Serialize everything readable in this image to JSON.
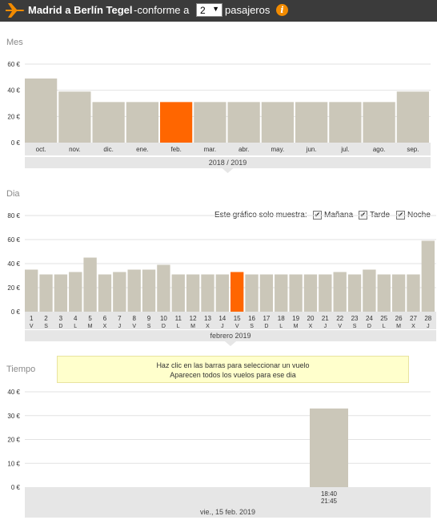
{
  "header": {
    "route": "Madrid a Berlín Tegel",
    "prefix": "-conforme a",
    "passengers_value": "2",
    "suffix": "pasajeros",
    "info_icon": "info-icon",
    "accent": "#f28b00",
    "bar_bg": "#3b3b3b"
  },
  "sections": {
    "month_title": "Mes",
    "day_title": "Dia",
    "time_title": "Tiempo"
  },
  "colors": {
    "bar": "#cbc7b9",
    "selected": "#ff6600",
    "axis_band": "#e6e6e6"
  },
  "filters": {
    "label": "Este gráfico solo muestra:",
    "options": [
      {
        "label": "Mañana",
        "checked": true
      },
      {
        "label": "Tarde",
        "checked": true
      },
      {
        "label": "Noche",
        "checked": true
      }
    ]
  },
  "tooltip": {
    "line1": "Haz clic en las barras para seleccionar un vuelo",
    "line2": "Aparecen todos los vuelos para ese dia"
  },
  "chart_data": [
    {
      "type": "bar",
      "title": "Mes",
      "categories": [
        "oct.",
        "nov.",
        "dic.",
        "ene.",
        "feb.",
        "mar.",
        "abr.",
        "may.",
        "jun.",
        "jul.",
        "ago.",
        "sep."
      ],
      "values": [
        49,
        39,
        31,
        31,
        31,
        31,
        31,
        31,
        31,
        31,
        31,
        39
      ],
      "selected_index": 4,
      "ylim": [
        0,
        60
      ],
      "yticks": [
        "0 €",
        "20 €",
        "40 €",
        "60 €"
      ],
      "period_label": "2018 / 2019",
      "grid": true
    },
    {
      "type": "bar",
      "title": "Dia",
      "categories": [
        "1",
        "2",
        "3",
        "4",
        "5",
        "6",
        "7",
        "8",
        "9",
        "10",
        "11",
        "12",
        "13",
        "14",
        "15",
        "16",
        "17",
        "18",
        "19",
        "20",
        "21",
        "22",
        "23",
        "24",
        "25",
        "26",
        "27",
        "28"
      ],
      "weekdays": [
        "V",
        "S",
        "D",
        "L",
        "M",
        "X",
        "J",
        "V",
        "S",
        "D",
        "L",
        "M",
        "X",
        "J",
        "V",
        "S",
        "D",
        "L",
        "M",
        "X",
        "J",
        "V",
        "S",
        "D",
        "L",
        "M",
        "X",
        "J"
      ],
      "values": [
        35,
        31,
        31,
        33,
        45,
        31,
        33,
        35,
        35,
        39,
        31,
        31,
        31,
        31,
        33,
        31,
        31,
        31,
        31,
        31,
        31,
        33,
        31,
        35,
        31,
        31,
        31,
        59
      ],
      "selected_index": 14,
      "ylim": [
        0,
        80
      ],
      "yticks": [
        "0 €",
        "20 €",
        "40 €",
        "60 €",
        "80 €"
      ],
      "period_label": "febrero 2019",
      "grid": true
    },
    {
      "type": "bar",
      "title": "Tiempo",
      "categories": [
        "18:40\n21:45"
      ],
      "departure": "18:40",
      "arrival": "21:45",
      "values": [
        33
      ],
      "ylim": [
        0,
        40
      ],
      "yticks": [
        "0 €",
        "10 €",
        "20 €",
        "30 €",
        "40 €"
      ],
      "period_label": "vie., 15 feb. 2019",
      "grid": true
    }
  ]
}
